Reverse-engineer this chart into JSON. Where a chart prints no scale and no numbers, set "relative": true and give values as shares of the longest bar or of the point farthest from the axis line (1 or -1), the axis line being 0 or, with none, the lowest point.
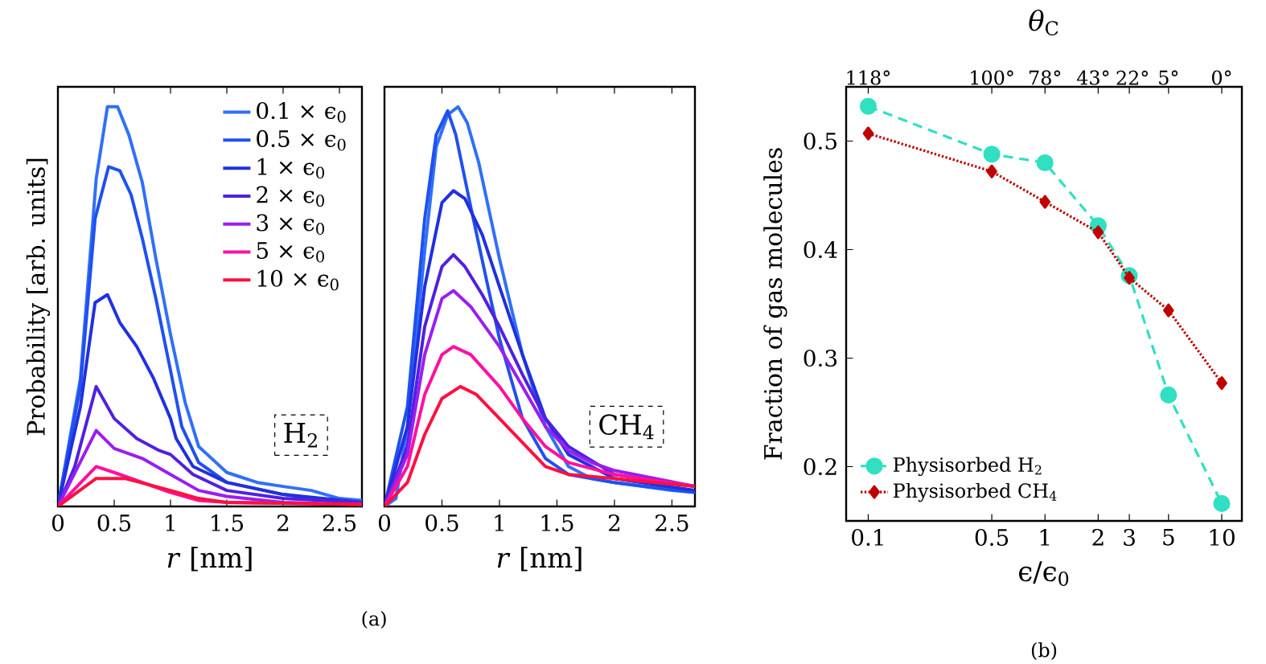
{
  "chart_data": [
    {
      "type": "line",
      "relative": true,
      "xlabel": "*r* [nm]",
      "ylabel": "Probability [arb. units]",
      "xlim": [
        0,
        2.7
      ],
      "xticks": [
        0,
        0.5,
        1,
        1.5,
        2,
        2.5
      ],
      "legend": "top right",
      "grid": false,
      "annotations": [
        "H$_{2}$",
        "(a)"
      ],
      "series": [
        {
          "name": "0.1 × ϵ$_{0}$",
          "color": "#3070f8",
          "x": [
            0,
            0.2,
            0.34,
            0.44,
            0.53,
            0.63,
            0.75,
            0.87,
            1.0,
            1.13,
            1.25,
            1.5,
            1.77,
            2.0,
            2.25,
            2.5,
            2.7
          ],
          "values": [
            0,
            0.32,
            0.82,
            1.0,
            1.0,
            0.93,
            0.81,
            0.62,
            0.43,
            0.26,
            0.15,
            0.085,
            0.06,
            0.05,
            0.04,
            0.02,
            0.015
          ]
        },
        {
          "name": "0.5 × ϵ$_{0}$",
          "color": "#2050f0",
          "x": [
            0,
            0.2,
            0.33,
            0.45,
            0.55,
            0.65,
            0.75,
            0.87,
            1.0,
            1.1,
            1.25,
            1.5,
            2.0,
            2.5,
            2.7
          ],
          "values": [
            0,
            0.3,
            0.72,
            0.85,
            0.84,
            0.78,
            0.67,
            0.52,
            0.34,
            0.2,
            0.11,
            0.06,
            0.03,
            0.01,
            0.01
          ]
        },
        {
          "name": "1 × ϵ$_{0}$",
          "color": "#2030e0",
          "x": [
            0,
            0.2,
            0.33,
            0.44,
            0.55,
            0.7,
            0.85,
            1.0,
            1.05,
            1.2,
            1.5,
            2.0,
            2.7
          ],
          "values": [
            0,
            0.25,
            0.51,
            0.53,
            0.46,
            0.4,
            0.32,
            0.22,
            0.17,
            0.1,
            0.06,
            0.03,
            0.01
          ]
        },
        {
          "name": "2 × ϵ$_{0}$",
          "color": "#5020e0",
          "x": [
            0,
            0.15,
            0.34,
            0.5,
            0.7,
            0.9,
            1.0,
            1.2,
            1.5,
            2.0,
            2.7
          ],
          "values": [
            0,
            0.1,
            0.3,
            0.22,
            0.17,
            0.14,
            0.13,
            0.08,
            0.04,
            0.02,
            0.01
          ]
        },
        {
          "name": "3 × ϵ$_{0}$",
          "color": "#9a1ef0",
          "x": [
            0,
            0.34,
            0.5,
            0.75,
            1.0,
            1.25,
            1.5,
            2.0,
            2.7
          ],
          "values": [
            0,
            0.19,
            0.145,
            0.12,
            0.08,
            0.04,
            0.025,
            0.01,
            0.005
          ]
        },
        {
          "name": "5 × ϵ$_{0}$",
          "color": "#ff10a0",
          "x": [
            0,
            0.34,
            0.5,
            0.75,
            1.0,
            1.25,
            1.5,
            2.7
          ],
          "values": [
            0,
            0.1,
            0.085,
            0.06,
            0.035,
            0.015,
            0.01,
            0.005
          ]
        },
        {
          "name": "10 × ϵ$_{0}$",
          "color": "#ff1040",
          "x": [
            0,
            0.34,
            0.6,
            0.8,
            1.0,
            1.25,
            1.5,
            2.7
          ],
          "values": [
            0,
            0.07,
            0.07,
            0.055,
            0.04,
            0.02,
            0.01,
            0.005
          ]
        }
      ]
    },
    {
      "type": "line",
      "relative": true,
      "xlabel": "*r* [nm]",
      "xlim": [
        0,
        2.7
      ],
      "xticks": [
        0,
        0.5,
        1,
        1.5,
        2,
        2.5
      ],
      "grid": false,
      "annotations": [
        "CH$_{4}$"
      ],
      "series": [
        {
          "color": "#3070f8",
          "x": [
            0,
            0.1,
            0.2,
            0.35,
            0.45,
            0.55,
            0.64,
            0.72,
            0.82,
            1.0,
            1.2,
            1.4,
            1.6,
            1.8,
            2.0,
            2.5,
            2.7
          ],
          "values": [
            0,
            0.02,
            0.2,
            0.64,
            0.9,
            0.98,
            1.0,
            0.96,
            0.86,
            0.62,
            0.38,
            0.2,
            0.1,
            0.07,
            0.06,
            0.04,
            0.035
          ]
        },
        {
          "color": "#2050f0",
          "x": [
            0,
            0.2,
            0.35,
            0.45,
            0.55,
            0.62,
            0.75,
            0.9,
            1.0,
            1.2,
            1.4,
            1.6,
            2.0,
            2.7
          ],
          "values": [
            0,
            0.25,
            0.72,
            0.93,
            0.99,
            0.93,
            0.75,
            0.55,
            0.42,
            0.22,
            0.12,
            0.08,
            0.06,
            0.035
          ]
        },
        {
          "color": "#2030e0",
          "x": [
            0,
            0.2,
            0.35,
            0.5,
            0.6,
            0.7,
            0.85,
            1.0,
            1.2,
            1.4,
            1.6,
            2.0,
            2.7
          ],
          "values": [
            0,
            0.2,
            0.55,
            0.76,
            0.79,
            0.77,
            0.68,
            0.55,
            0.38,
            0.22,
            0.13,
            0.07,
            0.04
          ]
        },
        {
          "color": "#5020e0",
          "x": [
            0,
            0.2,
            0.35,
            0.5,
            0.6,
            0.7,
            0.85,
            1.0,
            1.2,
            1.4,
            1.6,
            2.0,
            2.7
          ],
          "values": [
            0,
            0.15,
            0.45,
            0.6,
            0.63,
            0.6,
            0.53,
            0.45,
            0.33,
            0.22,
            0.15,
            0.08,
            0.05
          ]
        },
        {
          "color": "#9a1ef0",
          "x": [
            0,
            0.2,
            0.35,
            0.5,
            0.6,
            0.75,
            1.0,
            1.2,
            1.4,
            1.6,
            1.8,
            2.0,
            2.7
          ],
          "values": [
            0,
            0.13,
            0.38,
            0.52,
            0.54,
            0.5,
            0.4,
            0.3,
            0.2,
            0.14,
            0.11,
            0.09,
            0.05
          ]
        },
        {
          "color": "#ff10a0",
          "x": [
            0,
            0.2,
            0.35,
            0.5,
            0.6,
            0.75,
            1.0,
            1.2,
            1.4,
            1.6,
            2.0,
            2.7
          ],
          "values": [
            0,
            0.1,
            0.28,
            0.38,
            0.4,
            0.38,
            0.3,
            0.22,
            0.15,
            0.11,
            0.08,
            0.05
          ]
        },
        {
          "color": "#ff1040",
          "x": [
            0,
            0.2,
            0.35,
            0.5,
            0.66,
            0.8,
            1.0,
            1.2,
            1.4,
            1.6,
            2.0,
            2.7
          ],
          "values": [
            0,
            0.06,
            0.18,
            0.27,
            0.3,
            0.28,
            0.22,
            0.16,
            0.1,
            0.08,
            0.07,
            0.05
          ]
        }
      ]
    },
    {
      "type": "line",
      "xlabel": "ϵ/ϵ$_{0}$",
      "ylabel": "Fraction of gas molecules",
      "x2label": "*θ*$_{C}$",
      "log": "x",
      "xlim": [
        0.075,
        13
      ],
      "xticks": [
        0.1,
        0.5,
        1,
        2,
        3,
        5,
        10
      ],
      "ylim": [
        0.15,
        0.55
      ],
      "yticks": [
        0.2,
        0.3,
        0.4,
        0.5
      ],
      "legend": "bottom left",
      "grid": false,
      "annotations": [
        "(b)",
        "118°",
        "100°",
        "78°",
        "43°",
        "22°",
        "5°",
        "0°"
      ],
      "series": [
        {
          "name": "Physisorbed H$_{2}$",
          "color": "#30e0c0",
          "marker": "circle",
          "line_style": "dashed",
          "x": [
            0.1,
            0.5,
            1,
            2,
            3,
            5,
            10
          ],
          "values": [
            0.532,
            0.488,
            0.48,
            0.422,
            0.376,
            0.266,
            0.166
          ]
        },
        {
          "name": "Physisorbed CH$_{4}$",
          "color": "#c00000",
          "marker": "diamond",
          "line_style": "dotted",
          "x": [
            0.1,
            0.5,
            1,
            2,
            3,
            5,
            10
          ],
          "values": [
            0.507,
            0.472,
            0.444,
            0.416,
            0.374,
            0.344,
            0.277
          ]
        }
      ]
    }
  ]
}
